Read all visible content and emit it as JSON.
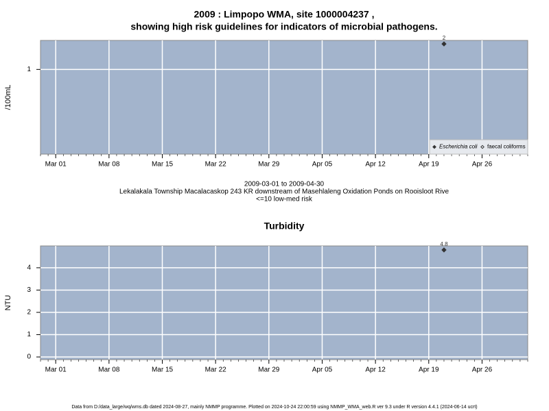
{
  "chart_data": [
    {
      "type": "scatter",
      "title": [
        "2009 : Limpopo WMA, site 1000004237 ,",
        "showing high risk guidelines for indicators of microbial pathogens."
      ],
      "y_label": "/100mL",
      "log_y": true,
      "xlim": [
        "2009-02-27",
        "2009-05-02"
      ],
      "xticks": [
        {
          "value": "2009-03-01",
          "label": "Mar 01"
        },
        {
          "value": "2009-03-08",
          "label": "Mar 08"
        },
        {
          "value": "2009-03-15",
          "label": "Mar 15"
        },
        {
          "value": "2009-03-22",
          "label": "Mar 22"
        },
        {
          "value": "2009-03-29",
          "label": "Mar 29"
        },
        {
          "value": "2009-04-05",
          "label": "Apr 05"
        },
        {
          "value": "2009-04-12",
          "label": "Apr 12"
        },
        {
          "value": "2009-04-19",
          "label": "Apr 19"
        },
        {
          "value": "2009-04-26",
          "label": "Apr 26"
        }
      ],
      "ylim": [
        0.1,
        2.2
      ],
      "yticks": [
        1
      ],
      "grid": true,
      "legend": "bottom-right",
      "series": [
        {
          "name": "Escherichia coli",
          "color": "#333333",
          "marker": "filled-diamond",
          "x": [
            "2009-04-21"
          ],
          "values": [
            2
          ]
        },
        {
          "name": "faecal coliforms",
          "color": "#333333",
          "marker": "open-diamond",
          "x": [],
          "values": []
        }
      ],
      "caption": [
        "2009-03-01 to 2009-04-30",
        "Lekalakala Township Macalacaskop 243 KR downstream of Masehlaleng Oxidation Ponds on Rooisloot Rive",
        "<=10 low-med risk"
      ]
    },
    {
      "type": "scatter",
      "title": [
        "Turbidity"
      ],
      "y_label": "NTU",
      "log_y": false,
      "xlim": [
        "2009-02-27",
        "2009-05-02"
      ],
      "xticks": [
        {
          "value": "2009-03-01",
          "label": "Mar 01"
        },
        {
          "value": "2009-03-08",
          "label": "Mar 08"
        },
        {
          "value": "2009-03-15",
          "label": "Mar 15"
        },
        {
          "value": "2009-03-22",
          "label": "Mar 22"
        },
        {
          "value": "2009-03-29",
          "label": "Mar 29"
        },
        {
          "value": "2009-04-05",
          "label": "Apr 05"
        },
        {
          "value": "2009-04-12",
          "label": "Apr 12"
        },
        {
          "value": "2009-04-19",
          "label": "Apr 19"
        },
        {
          "value": "2009-04-26",
          "label": "Apr 26"
        }
      ],
      "ylim": [
        -0.12,
        4.98
      ],
      "yticks": [
        0,
        1,
        2,
        3,
        4
      ],
      "grid": true,
      "series": [
        {
          "name": "Turbidity",
          "color": "#333333",
          "marker": "filled-diamond",
          "x": [
            "2009-04-21"
          ],
          "values": [
            4.8
          ]
        }
      ]
    }
  ],
  "footer": "Data from D:/data_large/wq/wms.db dated 2024-08-27, mainly NMMP programme. Plotted on 2024-10-24 22:00:59 using NMMP_WMA_web.R ver 9.3 under R version 4.4.1 (2024-06-14 ucrt)"
}
